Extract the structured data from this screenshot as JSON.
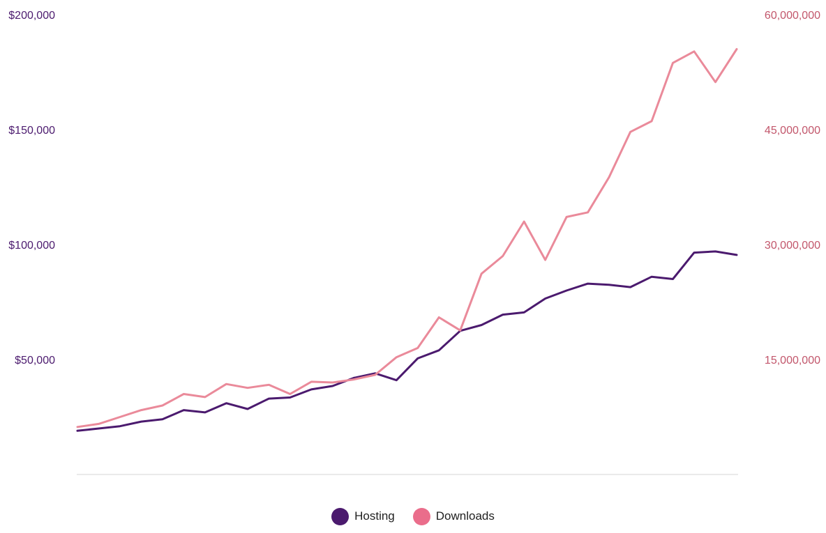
{
  "chart_data": {
    "type": "line",
    "title": "",
    "x": [
      1,
      2,
      3,
      4,
      5,
      6,
      7,
      8,
      9,
      10,
      11,
      12,
      13,
      14,
      15,
      16,
      17,
      18,
      19,
      20,
      21,
      22,
      23,
      24,
      25,
      26,
      27,
      28,
      29,
      30,
      31,
      32
    ],
    "series": [
      {
        "name": "Hosting",
        "axis": "left",
        "color": "#4b1a6e",
        "values": [
          19000,
          20000,
          21000,
          23000,
          24000,
          28000,
          27000,
          31000,
          28500,
          33000,
          33500,
          37000,
          38500,
          42000,
          44000,
          41000,
          50500,
          54000,
          62500,
          65000,
          69500,
          70500,
          76500,
          80000,
          83000,
          82500,
          81500,
          86000,
          85000,
          96500,
          97000,
          95500
        ]
      },
      {
        "name": "Downloads",
        "axis": "right",
        "color": "#ea8a9a",
        "values": [
          6200000,
          6600000,
          7500000,
          8400000,
          9000000,
          10500000,
          10100000,
          11800000,
          11300000,
          11700000,
          10500000,
          12100000,
          12000000,
          12400000,
          13000000,
          15300000,
          16500000,
          20500000,
          18800000,
          26200000,
          28500000,
          33000000,
          28000000,
          33600000,
          34200000,
          38800000,
          44700000,
          46100000,
          53700000,
          55200000,
          51200000,
          55500000
        ]
      }
    ],
    "left_axis": {
      "ticks": [
        "$200,000",
        "$150,000",
        "$100,000",
        "$50,000"
      ],
      "tick_values": [
        200000,
        150000,
        100000,
        50000
      ],
      "ylim": [
        0,
        200000
      ],
      "color": "#4b1a6e"
    },
    "right_axis": {
      "ticks": [
        "60,000,000",
        "45,000,000",
        "30,000,000",
        "15,000,000"
      ],
      "tick_values": [
        60000000,
        45000000,
        30000000,
        15000000
      ],
      "ylim": [
        0,
        60000000
      ],
      "color": "#c2566b"
    },
    "grid": false,
    "legend_position": "bottom-center"
  },
  "legend": {
    "items": [
      {
        "label": "Hosting",
        "color": "#4b1a6e"
      },
      {
        "label": "Downloads",
        "color": "#ea6d8b"
      }
    ]
  }
}
